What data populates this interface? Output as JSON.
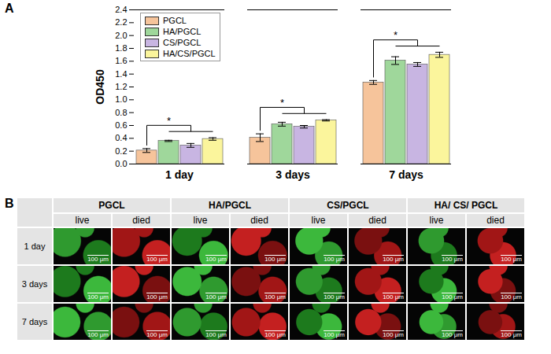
{
  "chart_data": {
    "type": "bar",
    "panel": "A",
    "categories": [
      "1 day",
      "3 days",
      "7 days"
    ],
    "series": [
      {
        "name": "PGCL",
        "color": "#f6c49b",
        "values": [
          0.21,
          0.41,
          1.27
        ],
        "errors": [
          0.03,
          0.06,
          0.03
        ]
      },
      {
        "name": "HA/PGCL",
        "color": "#9fd79b",
        "values": [
          0.36,
          0.62,
          1.61
        ],
        "errors": [
          0.01,
          0.03,
          0.06
        ]
      },
      {
        "name": "CS/PGCL",
        "color": "#c8b5e2",
        "values": [
          0.29,
          0.58,
          1.55
        ],
        "errors": [
          0.03,
          0.02,
          0.03
        ]
      },
      {
        "name": "HA/CS/PGCL",
        "color": "#fbf59c",
        "values": [
          0.39,
          0.68,
          1.7
        ],
        "errors": [
          0.02,
          0.01,
          0.04
        ]
      }
    ],
    "ylabel": "OD450",
    "ylim": [
      0,
      2.4
    ],
    "yticks": [
      {
        "value": 0,
        "label": "0.0"
      },
      0.2,
      0.4,
      0.6,
      0.8,
      {
        "value": 1,
        "label": "1.0"
      },
      1.2,
      1.4,
      1.6,
      1.8,
      {
        "value": 2,
        "label": "2.0"
      },
      2.2,
      2.4
    ],
    "legend": "top-left",
    "annotations": [
      {
        "category": "1 day",
        "text": "*"
      },
      {
        "category": "3 days",
        "text": "*"
      },
      {
        "category": "7 days",
        "text": "*"
      }
    ]
  },
  "panel_b": {
    "panel": "B",
    "columns": [
      "PGCL",
      "HA/PGCL",
      "CS/PGCL",
      "HA/ CS/ PGCL"
    ],
    "subcolumns": [
      "live",
      "died"
    ],
    "rows": [
      "1 day",
      "3 days",
      "7 days"
    ],
    "scale_bar": "100 μm"
  }
}
